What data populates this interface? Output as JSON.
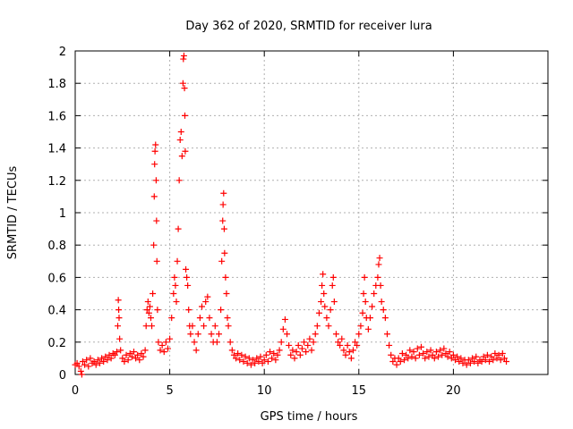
{
  "chart_data": {
    "type": "scatter",
    "title": "Day 362 of 2020, SRMTID for receiver lura",
    "xlabel": "GPS time / hours",
    "ylabel": "SRMTID / TECUs",
    "xlim": [
      0,
      25
    ],
    "ylim": [
      0,
      2
    ],
    "xticks": [
      0,
      5,
      10,
      15,
      20
    ],
    "xtick_labels": [
      "0",
      "5",
      "10",
      "15",
      "20"
    ],
    "yticks": [
      0,
      0.2,
      0.4,
      0.6,
      0.8,
      1,
      1.2,
      1.4,
      1.6,
      1.8,
      2
    ],
    "ytick_labels": [
      "0",
      "0.2",
      "0.4",
      "0.6",
      "0.8",
      "1",
      "1.2",
      "1.4",
      "1.6",
      "1.8",
      "2"
    ],
    "grid": true,
    "marker": "+",
    "color": "#ff0000",
    "series": [
      {
        "name": "SRMTID",
        "points": [
          [
            0.0,
            0.06
          ],
          [
            0.1,
            0.07
          ],
          [
            0.2,
            0.05
          ],
          [
            0.3,
            0.02
          ],
          [
            0.35,
            0.0
          ],
          [
            0.4,
            0.08
          ],
          [
            0.5,
            0.06
          ],
          [
            0.6,
            0.09
          ],
          [
            0.7,
            0.05
          ],
          [
            0.8,
            0.1
          ],
          [
            0.9,
            0.07
          ],
          [
            1.0,
            0.08
          ],
          [
            1.1,
            0.06
          ],
          [
            1.2,
            0.09
          ],
          [
            1.3,
            0.07
          ],
          [
            1.4,
            0.1
          ],
          [
            1.5,
            0.08
          ],
          [
            1.6,
            0.11
          ],
          [
            1.7,
            0.09
          ],
          [
            1.8,
            0.12
          ],
          [
            1.9,
            0.1
          ],
          [
            2.0,
            0.13
          ],
          [
            2.1,
            0.12
          ],
          [
            2.2,
            0.14
          ],
          [
            2.25,
            0.3
          ],
          [
            2.28,
            0.46
          ],
          [
            2.3,
            0.4
          ],
          [
            2.32,
            0.35
          ],
          [
            2.35,
            0.22
          ],
          [
            2.4,
            0.15
          ],
          [
            2.5,
            0.1
          ],
          [
            2.6,
            0.08
          ],
          [
            2.7,
            0.12
          ],
          [
            2.8,
            0.09
          ],
          [
            2.9,
            0.13
          ],
          [
            3.0,
            0.11
          ],
          [
            3.1,
            0.14
          ],
          [
            3.2,
            0.1
          ],
          [
            3.3,
            0.12
          ],
          [
            3.4,
            0.09
          ],
          [
            3.5,
            0.13
          ],
          [
            3.6,
            0.11
          ],
          [
            3.7,
            0.15
          ],
          [
            3.75,
            0.3
          ],
          [
            3.8,
            0.4
          ],
          [
            3.85,
            0.45
          ],
          [
            3.9,
            0.38
          ],
          [
            3.95,
            0.42
          ],
          [
            4.0,
            0.35
          ],
          [
            4.05,
            0.3
          ],
          [
            4.1,
            0.5
          ],
          [
            4.15,
            0.8
          ],
          [
            4.18,
            1.1
          ],
          [
            4.2,
            1.3
          ],
          [
            4.22,
            1.38
          ],
          [
            4.25,
            1.42
          ],
          [
            4.28,
            1.2
          ],
          [
            4.3,
            0.95
          ],
          [
            4.32,
            0.7
          ],
          [
            4.35,
            0.4
          ],
          [
            4.4,
            0.2
          ],
          [
            4.5,
            0.15
          ],
          [
            4.6,
            0.18
          ],
          [
            4.7,
            0.14
          ],
          [
            4.8,
            0.2
          ],
          [
            4.9,
            0.16
          ],
          [
            5.0,
            0.22
          ],
          [
            5.1,
            0.35
          ],
          [
            5.2,
            0.5
          ],
          [
            5.25,
            0.6
          ],
          [
            5.3,
            0.55
          ],
          [
            5.35,
            0.45
          ],
          [
            5.4,
            0.7
          ],
          [
            5.45,
            0.9
          ],
          [
            5.5,
            1.2
          ],
          [
            5.55,
            1.45
          ],
          [
            5.6,
            1.5
          ],
          [
            5.65,
            1.35
          ],
          [
            5.7,
            1.8
          ],
          [
            5.72,
            1.95
          ],
          [
            5.75,
            1.97
          ],
          [
            5.78,
            1.77
          ],
          [
            5.8,
            1.6
          ],
          [
            5.82,
            1.38
          ],
          [
            5.85,
            0.65
          ],
          [
            5.9,
            0.6
          ],
          [
            5.95,
            0.55
          ],
          [
            6.0,
            0.4
          ],
          [
            6.05,
            0.3
          ],
          [
            6.1,
            0.25
          ],
          [
            6.2,
            0.3
          ],
          [
            6.3,
            0.2
          ],
          [
            6.4,
            0.15
          ],
          [
            6.5,
            0.25
          ],
          [
            6.6,
            0.35
          ],
          [
            6.7,
            0.42
          ],
          [
            6.8,
            0.3
          ],
          [
            6.9,
            0.45
          ],
          [
            7.0,
            0.48
          ],
          [
            7.1,
            0.35
          ],
          [
            7.2,
            0.25
          ],
          [
            7.3,
            0.2
          ],
          [
            7.4,
            0.3
          ],
          [
            7.5,
            0.2
          ],
          [
            7.6,
            0.25
          ],
          [
            7.7,
            0.4
          ],
          [
            7.75,
            0.7
          ],
          [
            7.8,
            0.95
          ],
          [
            7.82,
            1.05
          ],
          [
            7.85,
            1.12
          ],
          [
            7.88,
            0.9
          ],
          [
            7.9,
            0.75
          ],
          [
            7.95,
            0.6
          ],
          [
            8.0,
            0.5
          ],
          [
            8.05,
            0.35
          ],
          [
            8.1,
            0.3
          ],
          [
            8.2,
            0.2
          ],
          [
            8.3,
            0.15
          ],
          [
            8.4,
            0.12
          ],
          [
            8.5,
            0.1
          ],
          [
            8.6,
            0.13
          ],
          [
            8.7,
            0.09
          ],
          [
            8.8,
            0.12
          ],
          [
            8.9,
            0.08
          ],
          [
            9.0,
            0.11
          ],
          [
            9.1,
            0.07
          ],
          [
            9.2,
            0.1
          ],
          [
            9.3,
            0.06
          ],
          [
            9.4,
            0.09
          ],
          [
            9.5,
            0.07
          ],
          [
            9.6,
            0.1
          ],
          [
            9.7,
            0.08
          ],
          [
            9.8,
            0.11
          ],
          [
            9.9,
            0.07
          ],
          [
            10.0,
            0.09
          ],
          [
            10.1,
            0.12
          ],
          [
            10.2,
            0.08
          ],
          [
            10.3,
            0.14
          ],
          [
            10.4,
            0.1
          ],
          [
            10.5,
            0.13
          ],
          [
            10.6,
            0.09
          ],
          [
            10.7,
            0.12
          ],
          [
            10.8,
            0.15
          ],
          [
            10.9,
            0.2
          ],
          [
            11.0,
            0.28
          ],
          [
            11.1,
            0.34
          ],
          [
            11.2,
            0.25
          ],
          [
            11.3,
            0.18
          ],
          [
            11.4,
            0.12
          ],
          [
            11.5,
            0.15
          ],
          [
            11.6,
            0.1
          ],
          [
            11.7,
            0.14
          ],
          [
            11.8,
            0.18
          ],
          [
            11.9,
            0.12
          ],
          [
            12.0,
            0.16
          ],
          [
            12.1,
            0.2
          ],
          [
            12.2,
            0.14
          ],
          [
            12.3,
            0.18
          ],
          [
            12.4,
            0.22
          ],
          [
            12.5,
            0.15
          ],
          [
            12.6,
            0.2
          ],
          [
            12.7,
            0.25
          ],
          [
            12.8,
            0.3
          ],
          [
            12.9,
            0.38
          ],
          [
            13.0,
            0.45
          ],
          [
            13.05,
            0.55
          ],
          [
            13.1,
            0.62
          ],
          [
            13.15,
            0.5
          ],
          [
            13.2,
            0.42
          ],
          [
            13.3,
            0.35
          ],
          [
            13.4,
            0.3
          ],
          [
            13.5,
            0.4
          ],
          [
            13.6,
            0.55
          ],
          [
            13.65,
            0.6
          ],
          [
            13.7,
            0.45
          ],
          [
            13.8,
            0.25
          ],
          [
            13.9,
            0.2
          ],
          [
            14.0,
            0.18
          ],
          [
            14.1,
            0.22
          ],
          [
            14.2,
            0.15
          ],
          [
            14.3,
            0.12
          ],
          [
            14.4,
            0.18
          ],
          [
            14.5,
            0.14
          ],
          [
            14.6,
            0.1
          ],
          [
            14.7,
            0.15
          ],
          [
            14.8,
            0.2
          ],
          [
            14.9,
            0.18
          ],
          [
            15.0,
            0.25
          ],
          [
            15.1,
            0.3
          ],
          [
            15.2,
            0.38
          ],
          [
            15.25,
            0.5
          ],
          [
            15.3,
            0.6
          ],
          [
            15.35,
            0.45
          ],
          [
            15.4,
            0.35
          ],
          [
            15.5,
            0.28
          ],
          [
            15.6,
            0.35
          ],
          [
            15.7,
            0.42
          ],
          [
            15.8,
            0.5
          ],
          [
            15.9,
            0.55
          ],
          [
            16.0,
            0.6
          ],
          [
            16.05,
            0.68
          ],
          [
            16.1,
            0.72
          ],
          [
            16.15,
            0.55
          ],
          [
            16.2,
            0.45
          ],
          [
            16.3,
            0.4
          ],
          [
            16.4,
            0.35
          ],
          [
            16.5,
            0.25
          ],
          [
            16.6,
            0.18
          ],
          [
            16.7,
            0.12
          ],
          [
            16.8,
            0.08
          ],
          [
            16.9,
            0.1
          ],
          [
            17.0,
            0.06
          ],
          [
            17.1,
            0.1
          ],
          [
            17.2,
            0.08
          ],
          [
            17.3,
            0.13
          ],
          [
            17.4,
            0.09
          ],
          [
            17.5,
            0.12
          ],
          [
            17.6,
            0.1
          ],
          [
            17.7,
            0.15
          ],
          [
            17.8,
            0.11
          ],
          [
            17.9,
            0.14
          ],
          [
            18.0,
            0.1
          ],
          [
            18.1,
            0.16
          ],
          [
            18.2,
            0.12
          ],
          [
            18.3,
            0.17
          ],
          [
            18.4,
            0.13
          ],
          [
            18.5,
            0.1
          ],
          [
            18.6,
            0.14
          ],
          [
            18.7,
            0.11
          ],
          [
            18.8,
            0.15
          ],
          [
            18.9,
            0.12
          ],
          [
            19.0,
            0.1
          ],
          [
            19.1,
            0.14
          ],
          [
            19.2,
            0.11
          ],
          [
            19.3,
            0.15
          ],
          [
            19.4,
            0.12
          ],
          [
            19.5,
            0.16
          ],
          [
            19.6,
            0.13
          ],
          [
            19.7,
            0.11
          ],
          [
            19.8,
            0.14
          ],
          [
            19.9,
            0.1
          ],
          [
            20.0,
            0.12
          ],
          [
            20.1,
            0.09
          ],
          [
            20.2,
            0.11
          ],
          [
            20.3,
            0.08
          ],
          [
            20.4,
            0.1
          ],
          [
            20.5,
            0.07
          ],
          [
            20.6,
            0.09
          ],
          [
            20.7,
            0.06
          ],
          [
            20.8,
            0.09
          ],
          [
            20.9,
            0.07
          ],
          [
            21.0,
            0.1
          ],
          [
            21.1,
            0.08
          ],
          [
            21.2,
            0.11
          ],
          [
            21.3,
            0.07
          ],
          [
            21.4,
            0.09
          ],
          [
            21.5,
            0.08
          ],
          [
            21.6,
            0.11
          ],
          [
            21.7,
            0.09
          ],
          [
            21.8,
            0.12
          ],
          [
            21.9,
            0.08
          ],
          [
            22.0,
            0.11
          ],
          [
            22.1,
            0.09
          ],
          [
            22.2,
            0.13
          ],
          [
            22.3,
            0.1
          ],
          [
            22.4,
            0.12
          ],
          [
            22.5,
            0.09
          ],
          [
            22.6,
            0.13
          ],
          [
            22.7,
            0.1
          ],
          [
            22.8,
            0.08
          ]
        ]
      }
    ]
  }
}
